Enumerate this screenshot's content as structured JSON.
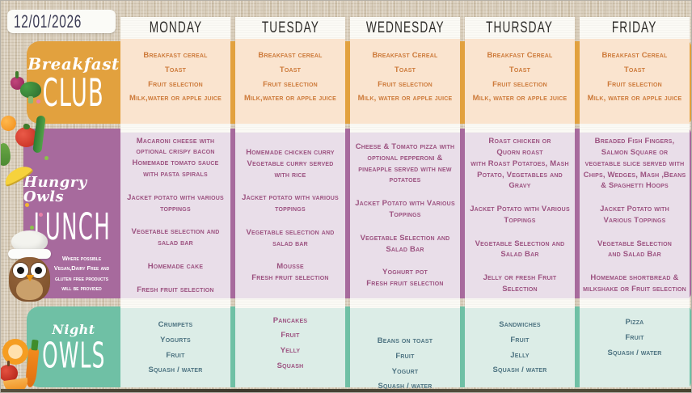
{
  "date": "12/01/2026",
  "colors": {
    "band_orange": "#e2a13e",
    "cell_peach": "#fae4cf",
    "text_orange": "#cd7a3a",
    "band_purple": "#a76a9d",
    "cell_lavender": "#e9dee9",
    "text_plum": "#9c5280",
    "band_teal": "#6fc0a5",
    "cell_mint": "#dcede7",
    "text_slate": "#4d7381",
    "header_text": "#2e2c29",
    "date_text": "#3b3b54"
  },
  "sections": {
    "breakfast": {
      "script": "Breakfast",
      "big": "CLUB"
    },
    "lunch": {
      "script": "Hungry Owls",
      "big": "LUNCH",
      "note": "Where possible\nVegan,Dairy Free and\ngluten free products\nwill be provided"
    },
    "night": {
      "script": "Night",
      "big": "OWLS"
    }
  },
  "days": [
    {
      "name": "MONDAY",
      "breakfast": [
        "Breakfast cereal",
        "Toast",
        "Fruit selection",
        "Milk,water or apple juice"
      ],
      "lunch": [
        "Macaroni cheese with optional crispy bacon\nHomemade tomato sauce with pasta spirals",
        "Jacket potato with various toppings",
        "Vegetable selection and salad bar",
        "Homemade cake",
        "Fresh fruit selection"
      ],
      "night": [
        "Crumpets",
        "Yogurts",
        "Fruit",
        "Squash / water"
      ]
    },
    {
      "name": "TUESDAY",
      "breakfast": [
        "Breakfast cereal",
        "Toast",
        "Fruit selection",
        "Milk,water or apple juice"
      ],
      "lunch": [
        "Homemade chicken curry\nVegetable curry served with rice",
        "Jacket potato with various toppings",
        "Vegetable selection and salad bar",
        "Mousse\nFresh fruit selection"
      ],
      "night": [
        "Pancakes",
        "Fruit",
        "Yelly",
        "Squash"
      ]
    },
    {
      "name": "WEDNESDAY",
      "breakfast": [
        "Breakfast Cereal",
        "Toast",
        "Fruit selection",
        "Milk, water or apple juice"
      ],
      "lunch": [
        "Cheese & Tomato pizza with optional pepperoni & pineapple served with new potatoes",
        "Jacket Potato with Various Toppings",
        "Vegetable Selection and Salad Bar",
        "Yoghurt pot\nFresh fruit selection"
      ],
      "night": [
        "Beans on toast",
        "Fruit",
        "Yogurt",
        "Squash / water"
      ]
    },
    {
      "name": "THURSDAY",
      "breakfast": [
        "Breakfast Cereal",
        "Toast",
        "Fruit selection",
        "Milk, water or apple juice"
      ],
      "lunch": [
        "Roast chicken or\nQuorn roast\nwith Roast Potatoes, Mash Potato, Vegetables and Gravy",
        "Jacket Potato with Various Toppings",
        "Vegetable Selection and Salad Bar",
        "Jelly or fresh Fruit Selection"
      ],
      "night": [
        "Sandwiches",
        "Fruit",
        "Jelly",
        "Squash / water"
      ]
    },
    {
      "name": "FRIDAY",
      "breakfast": [
        "Breakfast Cereal",
        "Toast",
        "Fruit selection",
        "Milk, water or apple juice"
      ],
      "lunch": [
        "Breaded Fish Fingers, Salmon Square or vegetable slice served with Chips, Wedges, Mash ,Beans & Spaghetti Hoops",
        "Jacket Potato with\nVarious Toppings",
        "Vegetable Selection\nand Salad Bar",
        "Homemade shortbread & milkshake  or Fruit selection"
      ],
      "night": [
        "Pizza",
        "Fruit",
        "Squash / water"
      ]
    }
  ]
}
